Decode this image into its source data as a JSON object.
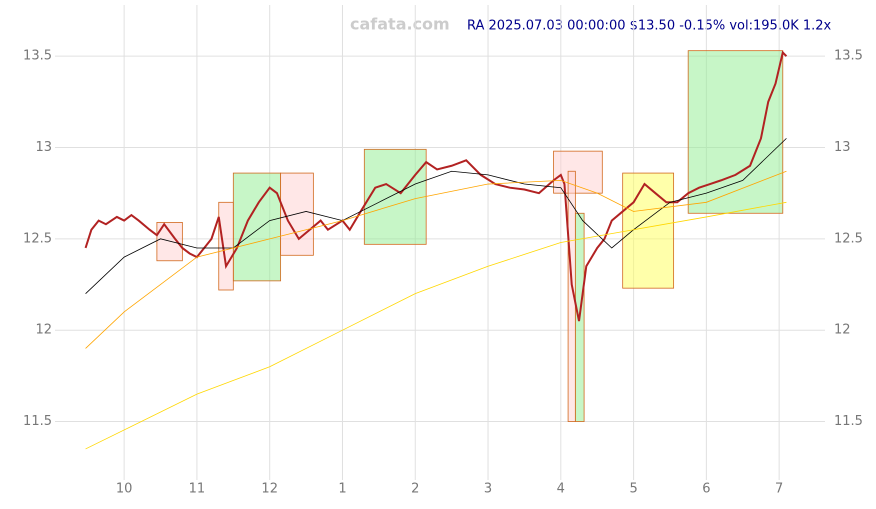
{
  "chart_data": {
    "type": "line",
    "title": "RA 2025.07.03 00:00:00 $13.50 -0.15% vol:195.0K 1.2x",
    "watermark": "cafata.com",
    "xlim": [
      -0.95,
      9.63
    ],
    "ylim": [
      11.18,
      13.78
    ],
    "xticks": [
      {
        "value": 0,
        "label": "10"
      },
      {
        "value": 1,
        "label": "11"
      },
      {
        "value": 2,
        "label": "12"
      },
      {
        "value": 3,
        "label": "1"
      },
      {
        "value": 4,
        "label": "2"
      },
      {
        "value": 5,
        "label": "3"
      },
      {
        "value": 6,
        "label": "4"
      },
      {
        "value": 7,
        "label": "5"
      },
      {
        "value": 8,
        "label": "6"
      },
      {
        "value": 9,
        "label": "7"
      }
    ],
    "yticks": [
      11.5,
      12.0,
      12.5,
      13.0,
      13.5
    ],
    "grid": true,
    "zones": [
      {
        "x": [
          1.5,
          2.15
        ],
        "y": [
          12.27,
          12.86
        ],
        "color": "#90ee90"
      },
      {
        "x": [
          3.3,
          4.15
        ],
        "y": [
          12.47,
          12.99
        ],
        "color": "#90ee90"
      },
      {
        "x": [
          5.9,
          6.57
        ],
        "y": [
          12.75,
          12.98
        ],
        "color": "#ffd0d0"
      },
      {
        "x": [
          6.85,
          7.55
        ],
        "y": [
          12.23,
          12.86
        ],
        "color": "#ffff55"
      },
      {
        "x": [
          7.75,
          9.05
        ],
        "y": [
          12.64,
          13.53
        ],
        "color": "#90ee90"
      },
      {
        "x": [
          6.1,
          6.2
        ],
        "y": [
          11.5,
          12.87
        ],
        "color": "#ffd0d0"
      },
      {
        "x": [
          6.2,
          6.32
        ],
        "y": [
          11.5,
          12.64
        ],
        "color": "#90ee90"
      },
      {
        "x": [
          0.45,
          0.8
        ],
        "y": [
          12.38,
          12.59
        ],
        "color": "#ffd0d0"
      },
      {
        "x": [
          2.15,
          2.6
        ],
        "y": [
          12.41,
          12.86
        ],
        "color": "#ffd0d0"
      },
      {
        "x": [
          1.3,
          1.5
        ],
        "y": [
          12.22,
          12.7
        ],
        "color": "#ffd0d0"
      }
    ],
    "series": [
      {
        "name": "close",
        "color": "#b22222",
        "width": 2,
        "x": [
          -0.53,
          -0.45,
          -0.35,
          -0.25,
          -0.1,
          0.0,
          0.1,
          0.2,
          0.35,
          0.45,
          0.55,
          0.7,
          0.8,
          0.9,
          1.0,
          1.1,
          1.2,
          1.3,
          1.4,
          1.55,
          1.7,
          1.85,
          2.0,
          2.1,
          2.25,
          2.4,
          2.55,
          2.7,
          2.8,
          3.0,
          3.1,
          3.25,
          3.45,
          3.6,
          3.8,
          4.0,
          4.15,
          4.3,
          4.5,
          4.7,
          4.9,
          5.1,
          5.3,
          5.5,
          5.7,
          5.9,
          6.0,
          6.05,
          6.15,
          6.25,
          6.35,
          6.5,
          6.6,
          6.7,
          6.85,
          7.0,
          7.15,
          7.3,
          7.45,
          7.6,
          7.75,
          7.9,
          8.05,
          8.2,
          8.4,
          8.6,
          8.75,
          8.85,
          8.95,
          9.05,
          9.1
        ],
        "values": [
          12.45,
          12.55,
          12.6,
          12.58,
          12.62,
          12.6,
          12.63,
          12.6,
          12.55,
          12.52,
          12.58,
          12.5,
          12.45,
          12.42,
          12.4,
          12.45,
          12.5,
          12.62,
          12.35,
          12.45,
          12.6,
          12.7,
          12.78,
          12.75,
          12.6,
          12.5,
          12.55,
          12.6,
          12.55,
          12.6,
          12.55,
          12.65,
          12.78,
          12.8,
          12.75,
          12.85,
          12.92,
          12.88,
          12.9,
          12.93,
          12.85,
          12.8,
          12.78,
          12.77,
          12.75,
          12.82,
          12.85,
          12.8,
          12.25,
          12.05,
          12.35,
          12.45,
          12.5,
          12.6,
          12.65,
          12.7,
          12.8,
          12.75,
          12.7,
          12.7,
          12.75,
          12.78,
          12.8,
          12.82,
          12.85,
          12.9,
          13.05,
          13.25,
          13.35,
          13.52,
          13.5
        ]
      },
      {
        "name": "ma-short",
        "color": "#000000",
        "width": 0.8,
        "x": [
          -0.53,
          0,
          0.5,
          1,
          1.5,
          2,
          2.5,
          3,
          3.5,
          4,
          4.5,
          5,
          5.5,
          6,
          6.3,
          6.7,
          7,
          7.5,
          8,
          8.5,
          9.1
        ],
        "values": [
          12.2,
          12.4,
          12.5,
          12.45,
          12.45,
          12.6,
          12.65,
          12.6,
          12.7,
          12.8,
          12.87,
          12.85,
          12.8,
          12.78,
          12.6,
          12.45,
          12.55,
          12.7,
          12.75,
          12.82,
          13.05
        ]
      },
      {
        "name": "ma-mid",
        "color": "#ffa500",
        "width": 0.8,
        "x": [
          -0.53,
          0,
          1,
          2,
          3,
          4,
          5,
          6,
          6.5,
          7,
          8,
          9.1
        ],
        "values": [
          11.9,
          12.1,
          12.4,
          12.5,
          12.6,
          12.72,
          12.8,
          12.82,
          12.75,
          12.65,
          12.7,
          12.87
        ]
      },
      {
        "name": "ma-long",
        "color": "#ffd700",
        "width": 0.8,
        "x": [
          -0.53,
          1,
          2,
          3,
          4,
          5,
          6,
          7,
          8,
          9.1
        ],
        "values": [
          11.35,
          11.65,
          11.8,
          12.0,
          12.2,
          12.35,
          12.48,
          12.55,
          12.62,
          12.7
        ]
      }
    ]
  }
}
